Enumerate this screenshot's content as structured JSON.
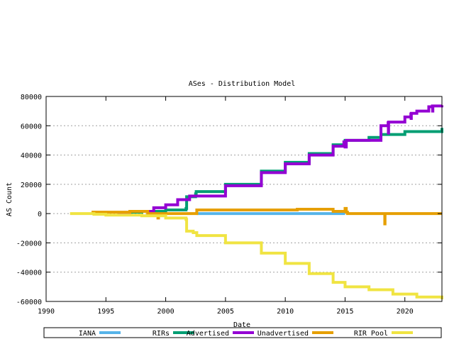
{
  "chart_data": {
    "type": "line",
    "title": "ASes - Distribution Model",
    "xlabel": "Date",
    "ylabel": "AS Count",
    "xlim": [
      1990,
      2023.1
    ],
    "ylim": [
      -60000,
      80000
    ],
    "xticks": [
      1990,
      1995,
      2000,
      2005,
      2010,
      2015,
      2020
    ],
    "yticks": [
      -60000,
      -40000,
      -20000,
      0,
      20000,
      40000,
      60000,
      80000
    ],
    "grid": "horizontal dotted",
    "legend": "bottom",
    "series": [
      {
        "name": "IANA",
        "color": "#56b4e9",
        "x": [
          2002.6,
          2015.0
        ],
        "y": [
          0,
          0
        ]
      },
      {
        "name": "RIRs",
        "color": "#009e73",
        "x": [
          1997,
          1998,
          2000,
          2001.7,
          2001.75,
          2002.5,
          2002.55,
          2005,
          2008,
          2010,
          2012,
          2014,
          2015,
          2017,
          2018,
          2020,
          2023.1
        ],
        "y": [
          1000,
          1500,
          2500,
          3500,
          11500,
          13500,
          15000,
          20000,
          29000,
          35000,
          41000,
          47000,
          50000,
          52000,
          54000,
          56000,
          58500
        ]
      },
      {
        "name": "Advertised",
        "color": "#9400d3",
        "x": [
          1996,
          1997,
          1999,
          2000,
          2001,
          2002,
          2005,
          2008,
          2010,
          2012,
          2014,
          2014.9,
          2015,
          2015.1,
          2018,
          2018.6,
          2018.62,
          2018.64,
          2020,
          2020.5,
          2020.52,
          2020.54,
          2021,
          2022,
          2022.3,
          2022.32,
          2022.34,
          2023.1
        ],
        "y": [
          0,
          1500,
          4000,
          6000,
          9500,
          12000,
          19000,
          28000,
          34000,
          40000,
          46000,
          49000,
          45500,
          50000,
          60000,
          62000,
          55000,
          62500,
          66000,
          68000,
          65000,
          68500,
          70000,
          73000,
          73500,
          70000,
          73500,
          74000
        ]
      },
      {
        "name": "Unadvertised",
        "color": "#e69f00",
        "x": [
          1993.8,
          1996,
          1997,
          1998.5,
          1999.3,
          1999.35,
          1999.4,
          2002.5,
          2002.6,
          2010,
          2011,
          2014,
          2014.9,
          2015,
          2015.1,
          2015.2,
          2018.3,
          2018.32,
          2018.34,
          2023.1
        ],
        "y": [
          1000,
          1000,
          1500,
          0,
          0,
          -3000,
          0,
          0,
          2500,
          2500,
          3000,
          1500,
          1500,
          3500,
          1000,
          0,
          0,
          -7000,
          0,
          0
        ]
      },
      {
        "name": "RIR Pool",
        "color": "#f0e442",
        "x": [
          1992,
          1994,
          1995,
          1998,
          2000,
          2001.7,
          2001.75,
          2002.3,
          2002.6,
          2005,
          2008,
          2010,
          2012,
          2014,
          2015,
          2017,
          2019,
          2021,
          2023.1
        ],
        "y": [
          0,
          -500,
          -1000,
          -1500,
          -3000,
          -4000,
          -12000,
          -13000,
          -15000,
          -20000,
          -27000,
          -34000,
          -41000,
          -47000,
          -50000,
          -52000,
          -55000,
          -57000,
          -58500
        ]
      }
    ]
  }
}
